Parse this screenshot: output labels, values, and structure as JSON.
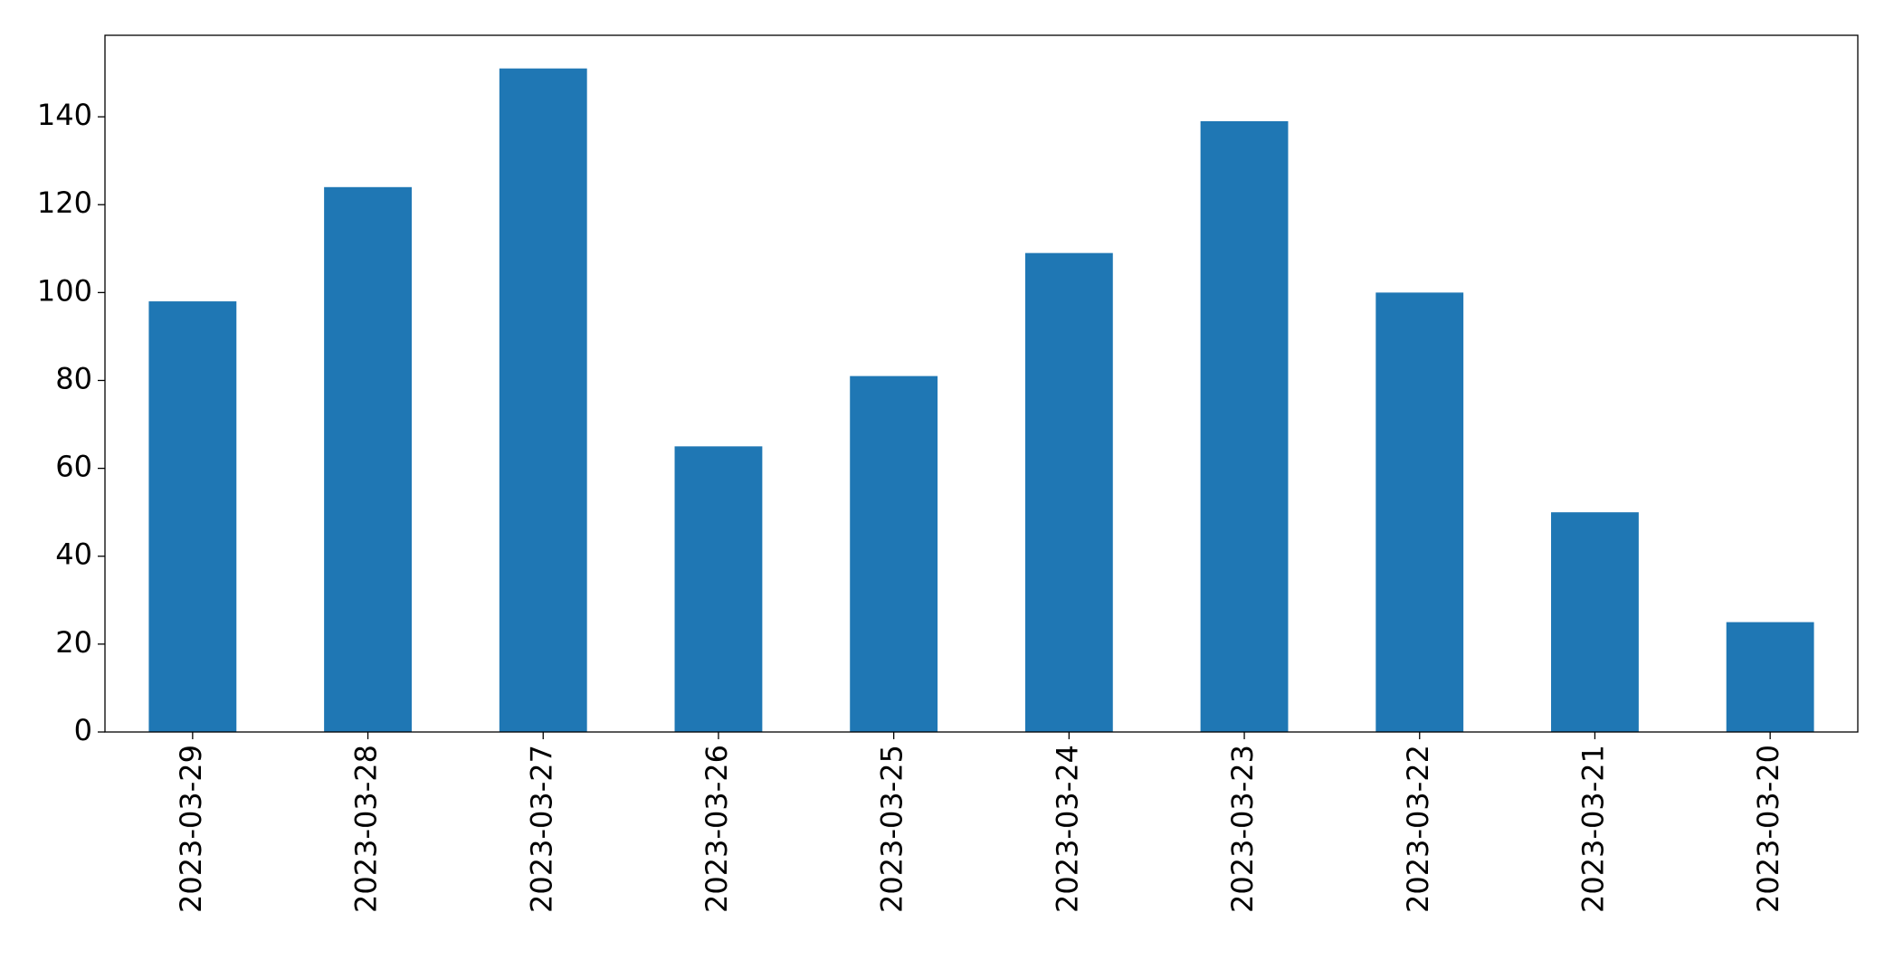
{
  "chart_data": {
    "type": "bar",
    "categories": [
      "2023-03-29",
      "2023-03-28",
      "2023-03-27",
      "2023-03-26",
      "2023-03-25",
      "2023-03-24",
      "2023-03-23",
      "2023-03-22",
      "2023-03-21",
      "2023-03-20"
    ],
    "values": [
      98,
      124,
      151,
      65,
      81,
      109,
      139,
      100,
      50,
      25
    ],
    "color": "#1f77b4",
    "ylim": [
      0,
      158.55
    ],
    "yticks": [
      0,
      20,
      40,
      60,
      80,
      100,
      120,
      140
    ],
    "grid": false
  }
}
